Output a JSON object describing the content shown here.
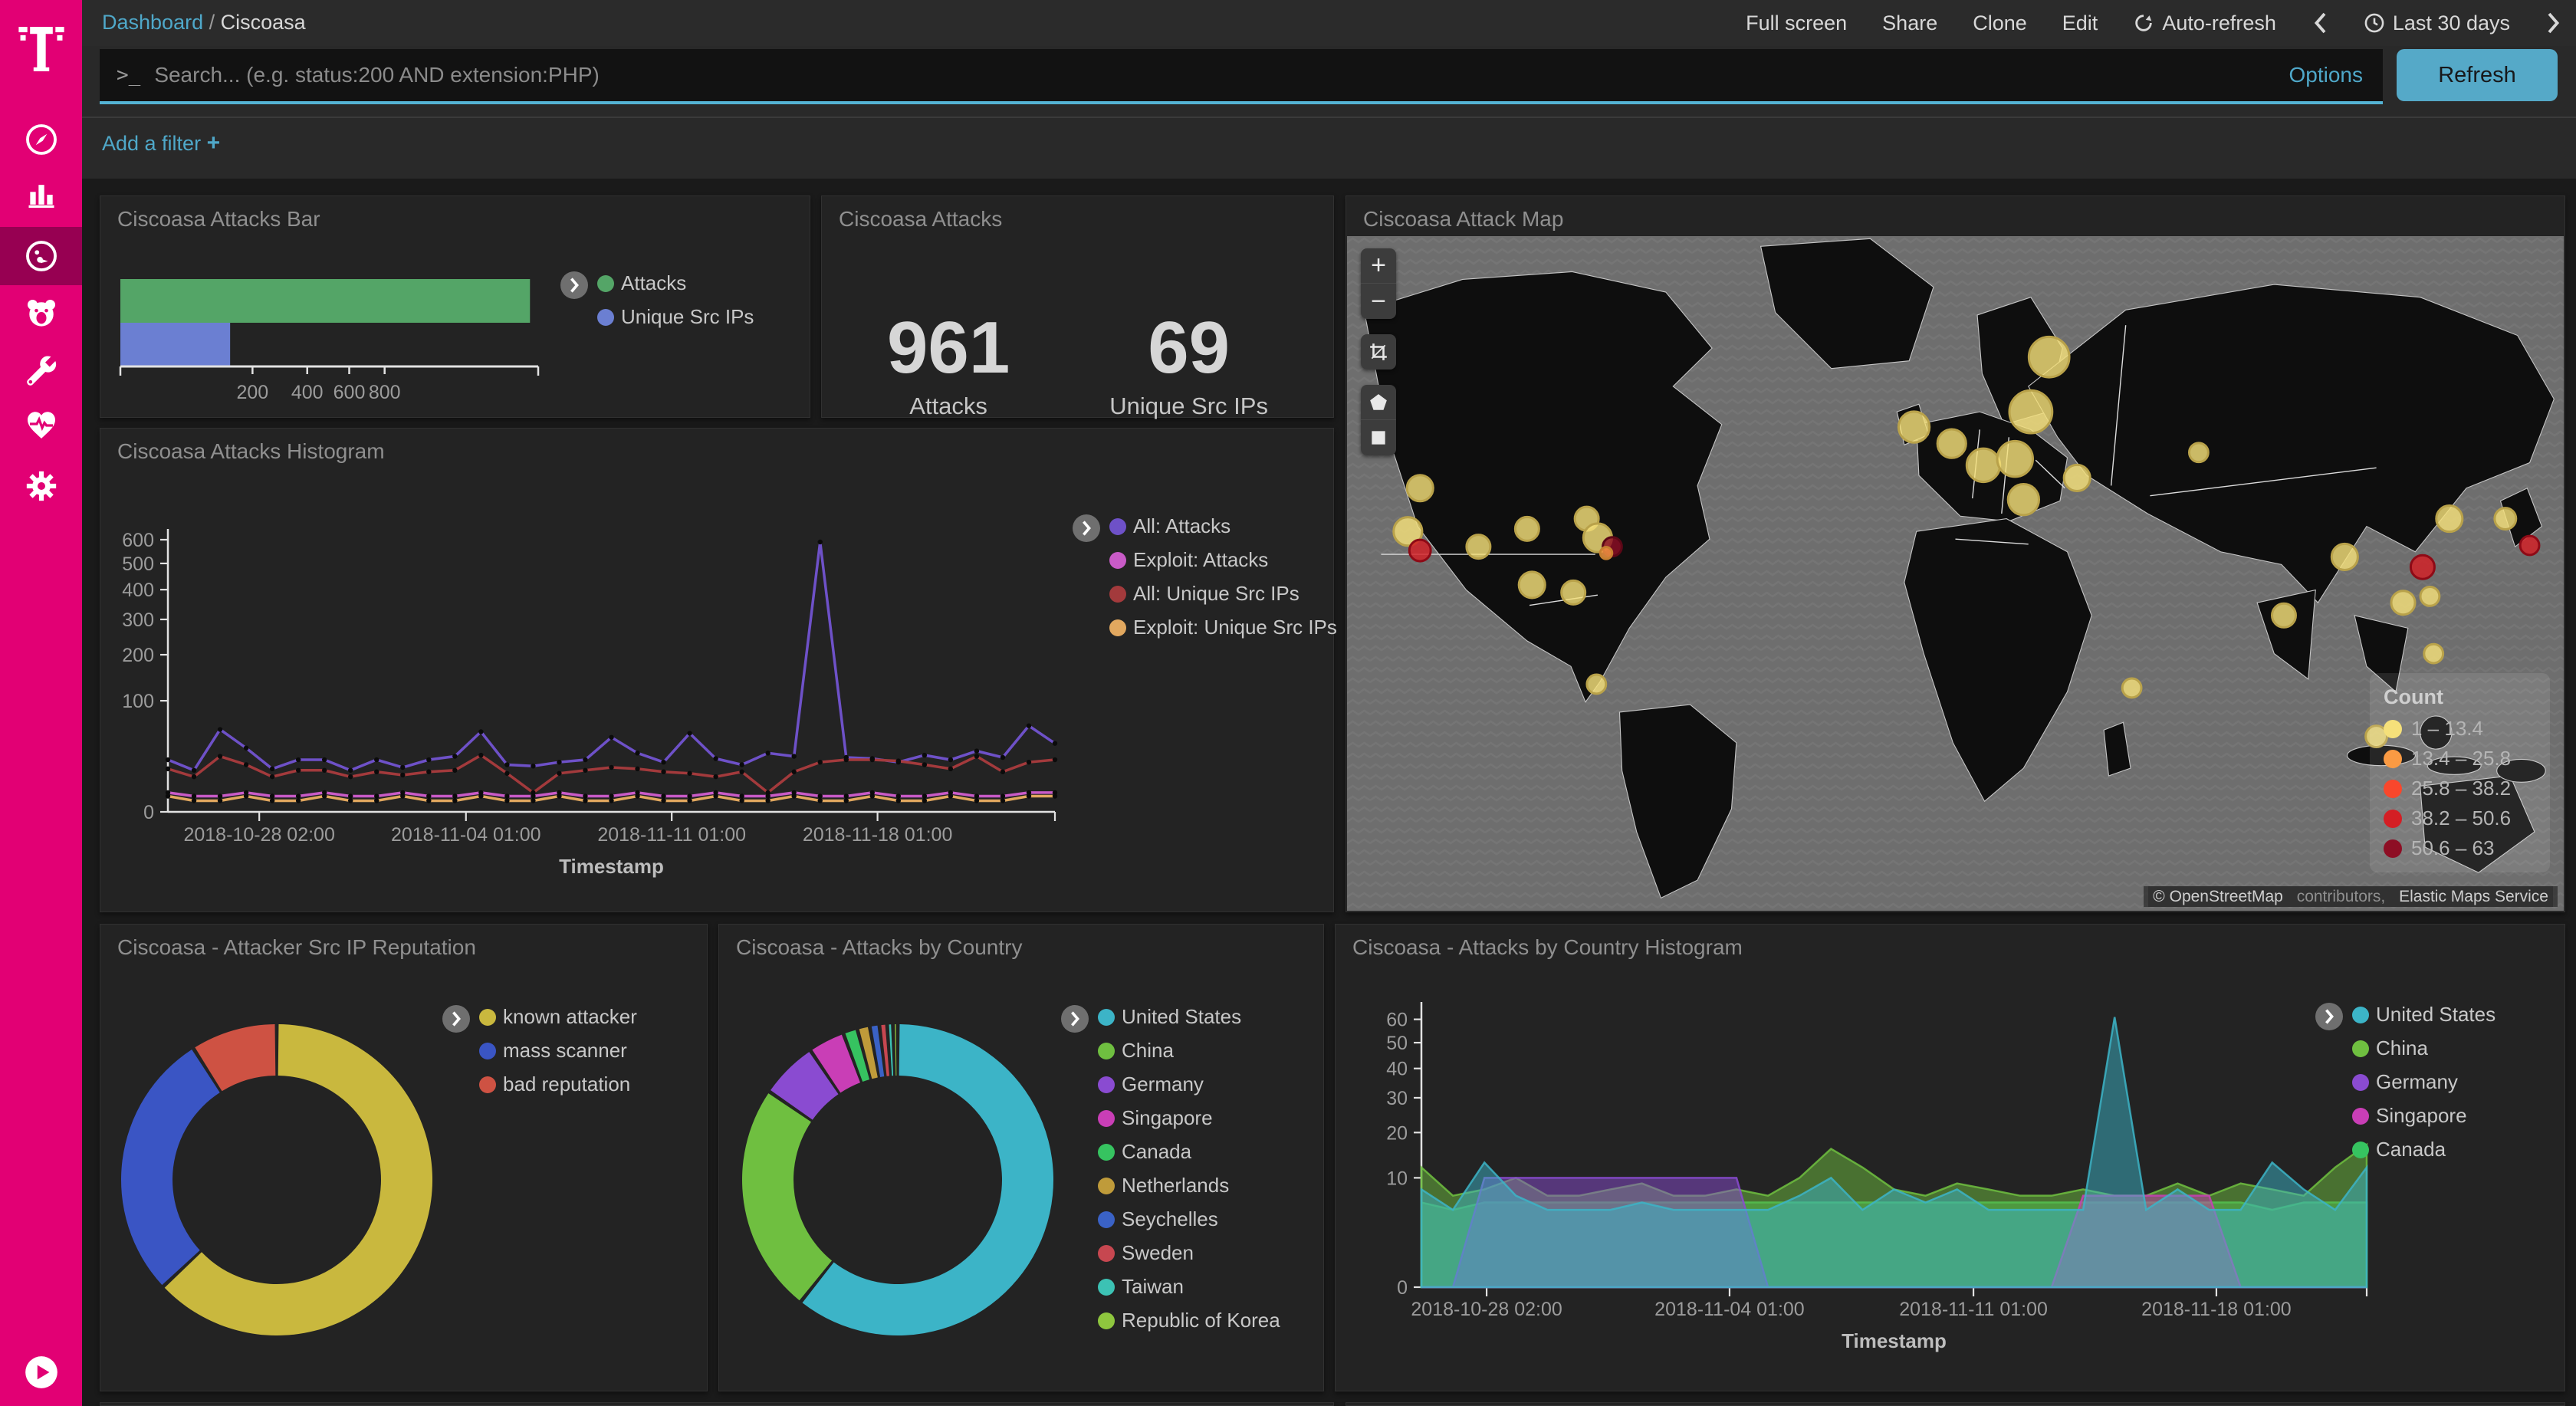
{
  "topbar": {
    "breadcrumb": {
      "parent": "Dashboard",
      "separator": "/",
      "current": "Ciscoasa"
    },
    "actions": {
      "full_screen": "Full screen",
      "share": "Share",
      "clone": "Clone",
      "edit": "Edit",
      "auto_refresh": "Auto-refresh",
      "time_range": "Last 30 days"
    }
  },
  "query_bar": {
    "prompt": ">_",
    "placeholder": "Search... (e.g. status:200 AND extension:PHP)",
    "options_label": "Options",
    "refresh_label": "Refresh"
  },
  "filter_bar": {
    "add_filter_label": "Add a filter",
    "plus": "+"
  },
  "sidebar": {
    "brand_color": "#e20074",
    "active_item": "dashboard",
    "items": [
      "discover",
      "visualize",
      "dashboard",
      "bear",
      "dev-tools",
      "monitoring",
      "management"
    ]
  },
  "map": {
    "attribution": {
      "copyright": "© OpenStreetMap",
      "contributors": " contributors, ",
      "service": "Elastic Maps Service"
    }
  },
  "panels": {
    "attacks_bar": {
      "title": "Ciscoasa Attacks Bar"
    },
    "attacks_metric": {
      "title": "Ciscoasa Attacks",
      "metrics": [
        {
          "value": "961",
          "label": "Attacks"
        },
        {
          "value": "69",
          "label": "Unique Src IPs"
        }
      ]
    },
    "attack_map": {
      "title": "Ciscoasa Attack Map"
    },
    "attacks_histogram": {
      "title": "Ciscoasa Attacks Histogram"
    },
    "reputation": {
      "title": "Ciscoasa - Attacker Src IP Reputation"
    },
    "country_pie": {
      "title": "Ciscoasa - Attacks by Country"
    },
    "country_histogram": {
      "title": "Ciscoasa - Attacks by Country Histogram"
    }
  },
  "chart_data": [
    {
      "id": "attacks_bar",
      "type": "bar",
      "orientation": "horizontal",
      "categories": [
        "Attacks",
        "Unique Src IPs"
      ],
      "values": [
        961,
        69
      ],
      "colors": [
        "#54a567",
        "#6b7fd2"
      ],
      "x_ticks": [
        200,
        400,
        600,
        800
      ],
      "scale": "sqrt",
      "xlim": [
        0,
        1000
      ],
      "legend_position": "right"
    },
    {
      "id": "attacks_histogram",
      "type": "line",
      "title": "Ciscoasa Attacks Histogram",
      "xlabel": "Timestamp",
      "ylabel": "",
      "ylim": [
        0,
        600
      ],
      "y_ticks": [
        0,
        100,
        200,
        300,
        400,
        500,
        600
      ],
      "y_scale": "sqrt",
      "x_tick_labels": [
        "2018-10-28 02:00",
        "2018-11-04 01:00",
        "2018-11-11 01:00",
        "2018-11-18 01:00"
      ],
      "legend_position": "right",
      "series": [
        {
          "name": "All: Attacks",
          "color": "#6e51c8",
          "values": [
            22,
            14,
            55,
            33,
            15,
            22,
            22,
            14,
            22,
            16,
            22,
            25,
            52,
            18,
            17,
            20,
            22,
            45,
            28,
            20,
            50,
            23,
            18,
            28,
            25,
            590,
            24,
            23,
            20,
            26,
            22,
            30,
            24,
            60,
            38
          ]
        },
        {
          "name": "Exploit: Attacks",
          "color": "#c95bc7",
          "values": [
            3,
            2,
            2,
            3,
            2,
            2,
            3,
            2,
            2,
            3,
            2,
            2,
            3,
            2,
            2,
            3,
            2,
            2,
            3,
            2,
            2,
            3,
            2,
            2,
            3,
            2,
            2,
            3,
            2,
            2,
            3,
            2,
            2,
            3,
            3
          ]
        },
        {
          "name": "All: Unique Src IPs",
          "color": "#a33a3c",
          "values": [
            15,
            10,
            25,
            18,
            10,
            14,
            14,
            10,
            13,
            11,
            13,
            14,
            26,
            12,
            3,
            12,
            14,
            16,
            15,
            13,
            12,
            10,
            13,
            3,
            13,
            20,
            22,
            22,
            21,
            18,
            15,
            25,
            13,
            20,
            22
          ]
        },
        {
          "name": "Exploit: Unique Src IPs",
          "color": "#e2a85f",
          "values": [
            2,
            1,
            1,
            2,
            1,
            1,
            2,
            1,
            1,
            2,
            1,
            1,
            2,
            1,
            1,
            2,
            1,
            1,
            2,
            1,
            1,
            2,
            1,
            1,
            2,
            1,
            1,
            2,
            1,
            1,
            2,
            1,
            1,
            2,
            2
          ]
        }
      ]
    },
    {
      "id": "attack_map",
      "type": "scatter",
      "subtype": "geo-bubble-map",
      "legend_title": "Count",
      "buckets": [
        {
          "range": "1 – 13.4",
          "color": "#f5e07a"
        },
        {
          "range": "13.4 – 25.8",
          "color": "#fa9a43"
        },
        {
          "range": "25.8 – 38.2",
          "color": "#f9472c"
        },
        {
          "range": "38.2 – 50.6",
          "color": "#d41e24"
        },
        {
          "range": "50.6 – 63",
          "color": "#8e0e24"
        }
      ],
      "bubbles": [
        {
          "x": 577,
          "y": 95,
          "r": 17,
          "b": 0
        },
        {
          "x": 562,
          "y": 138,
          "r": 18,
          "b": 0
        },
        {
          "x": 466,
          "y": 150,
          "r": 13,
          "b": 0
        },
        {
          "x": 497,
          "y": 163,
          "r": 12,
          "b": 0
        },
        {
          "x": 523,
          "y": 180,
          "r": 14,
          "b": 0
        },
        {
          "x": 549,
          "y": 175,
          "r": 15,
          "b": 0
        },
        {
          "x": 556,
          "y": 207,
          "r": 13,
          "b": 0
        },
        {
          "x": 600,
          "y": 190,
          "r": 11,
          "b": 0
        },
        {
          "x": 60,
          "y": 198,
          "r": 11,
          "b": 0
        },
        {
          "x": 50,
          "y": 232,
          "r": 12,
          "b": 0
        },
        {
          "x": 60,
          "y": 247,
          "r": 9,
          "b": 3
        },
        {
          "x": 108,
          "y": 244,
          "r": 10,
          "b": 0
        },
        {
          "x": 148,
          "y": 230,
          "r": 10,
          "b": 0
        },
        {
          "x": 152,
          "y": 274,
          "r": 11,
          "b": 0
        },
        {
          "x": 186,
          "y": 280,
          "r": 10,
          "b": 0
        },
        {
          "x": 197,
          "y": 222,
          "r": 10,
          "b": 0
        },
        {
          "x": 206,
          "y": 237,
          "r": 12,
          "b": 0
        },
        {
          "x": 218,
          "y": 244,
          "r": 8,
          "b": 4
        },
        {
          "x": 213,
          "y": 249,
          "r": 5,
          "b": 1
        },
        {
          "x": 205,
          "y": 352,
          "r": 8,
          "b": 0
        },
        {
          "x": 645,
          "y": 355,
          "r": 8,
          "b": 0
        },
        {
          "x": 770,
          "y": 298,
          "r": 10,
          "b": 0
        },
        {
          "x": 820,
          "y": 252,
          "r": 11,
          "b": 0
        },
        {
          "x": 884,
          "y": 260,
          "r": 10,
          "b": 3
        },
        {
          "x": 868,
          "y": 288,
          "r": 10,
          "b": 0
        },
        {
          "x": 890,
          "y": 283,
          "r": 8,
          "b": 0
        },
        {
          "x": 893,
          "y": 328,
          "r": 8,
          "b": 0
        },
        {
          "x": 846,
          "y": 393,
          "r": 9,
          "b": 0
        },
        {
          "x": 906,
          "y": 222,
          "r": 11,
          "b": 0
        },
        {
          "x": 952,
          "y": 222,
          "r": 9,
          "b": 0
        },
        {
          "x": 972,
          "y": 243,
          "r": 8,
          "b": 3
        },
        {
          "x": 700,
          "y": 170,
          "r": 8,
          "b": 0
        }
      ]
    },
    {
      "id": "reputation",
      "type": "pie",
      "donut": true,
      "labels": [
        "known attacker",
        "mass scanner",
        "bad reputation"
      ],
      "values": [
        63,
        28,
        9
      ],
      "colors": [
        "#c9b83e",
        "#3a55c4",
        "#ce5243"
      ],
      "legend_position": "right"
    },
    {
      "id": "country_pie",
      "type": "pie",
      "donut": true,
      "labels": [
        "United States",
        "China",
        "Germany",
        "Singapore",
        "Canada",
        "Netherlands",
        "Seychelles",
        "Sweden",
        "Taiwan",
        "Republic of Korea"
      ],
      "values": [
        61,
        24,
        6,
        3.8,
        1.5,
        1.3,
        1.0,
        0.8,
        0.6,
        0.5
      ],
      "colors": [
        "#3cb4c7",
        "#6fbf40",
        "#8a4bd1",
        "#c93eb6",
        "#36c360",
        "#bf9b3a",
        "#3a62c6",
        "#c74750",
        "#3cc2b4",
        "#8ec63e"
      ],
      "legend_position": "right"
    },
    {
      "id": "country_histogram",
      "type": "area",
      "xlabel": "Timestamp",
      "ylim": [
        0,
        63
      ],
      "y_ticks": [
        0,
        10,
        20,
        30,
        40,
        50,
        60
      ],
      "y_scale": "sqrt",
      "x_tick_labels": [
        "2018-10-28 02:00",
        "2018-11-04 01:00",
        "2018-11-11 01:00",
        "2018-11-18 01:00"
      ],
      "legend_position": "right",
      "draw_order": [
        4,
        1,
        2,
        3,
        0
      ],
      "series": [
        {
          "name": "United States",
          "color": "#3cb4c7",
          "values": [
            8,
            5,
            13,
            7,
            5,
            5,
            5,
            6,
            5,
            5,
            5,
            5,
            7,
            10,
            5,
            8,
            6,
            8,
            5,
            5,
            5,
            5,
            61,
            5,
            8,
            5,
            5,
            13,
            8,
            5,
            12
          ]
        },
        {
          "name": "China",
          "color": "#6fbf40",
          "values": [
            12,
            7,
            8,
            10,
            7,
            7,
            8,
            9,
            7,
            7,
            8,
            7,
            10,
            16,
            12,
            8,
            7,
            9,
            8,
            7,
            7,
            8,
            7,
            7,
            9,
            7,
            9,
            8,
            7,
            12,
            17
          ]
        },
        {
          "name": "Germany",
          "color": "#8a4bd1",
          "values": [
            0,
            0,
            10,
            10,
            10,
            10,
            10,
            10,
            10,
            10,
            10,
            0,
            0,
            0,
            0,
            0,
            0,
            0,
            0,
            0,
            0,
            0,
            0,
            0,
            0,
            0,
            0,
            0,
            0,
            0,
            0
          ]
        },
        {
          "name": "Singapore",
          "color": "#c93eb6",
          "values": [
            0,
            0,
            0,
            0,
            0,
            0,
            0,
            0,
            0,
            0,
            0,
            0,
            0,
            0,
            0,
            0,
            0,
            0,
            0,
            0,
            0,
            7,
            7,
            7,
            7,
            7,
            0,
            0,
            0,
            0,
            0
          ]
        },
        {
          "name": "Canada",
          "color": "#36c360",
          "values": [
            6,
            5,
            6,
            6,
            6,
            6,
            6,
            6,
            6,
            6,
            6,
            6,
            6,
            6,
            6,
            6,
            6,
            6,
            6,
            6,
            6,
            6,
            6,
            6,
            6,
            6,
            6,
            5,
            6,
            6,
            6
          ]
        }
      ]
    }
  ]
}
